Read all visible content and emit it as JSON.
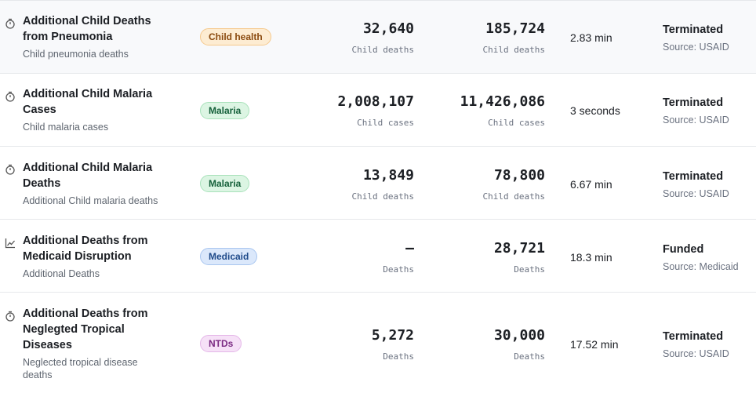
{
  "rows": [
    {
      "title_lines": [
        "Additional Child Deaths",
        "from Pneumonia"
      ],
      "subtitle_lines": [
        "Child pneumonia deaths"
      ],
      "badge": {
        "label": "Child health",
        "bg": "#fdecd2",
        "border": "#f5c98d",
        "color": "#8a4a0f"
      },
      "value1": "32,640",
      "unit1": "Child deaths",
      "value2": "185,724",
      "unit2": "Child deaths",
      "time": "2.83 min",
      "status": "Terminated",
      "source": "Source: USAID",
      "icon": "stopwatch-icon"
    },
    {
      "title_lines": [
        "Additional Child Malaria",
        "Cases"
      ],
      "subtitle_lines": [
        "Child malaria cases"
      ],
      "badge": {
        "label": "Malaria",
        "bg": "#dcf5e3",
        "border": "#a9e2bb",
        "color": "#15603a"
      },
      "value1": "2,008,107",
      "unit1": "Child cases",
      "value2": "11,426,086",
      "unit2": "Child cases",
      "time": "3 seconds",
      "status": "Terminated",
      "source": "Source: USAID",
      "icon": "stopwatch-icon"
    },
    {
      "title_lines": [
        "Additional Child Malaria",
        "Deaths"
      ],
      "subtitle_lines": [
        "Additional Child malaria deaths"
      ],
      "badge": {
        "label": "Malaria",
        "bg": "#dcf5e3",
        "border": "#a9e2bb",
        "color": "#15603a"
      },
      "value1": "13,849",
      "unit1": "Child deaths",
      "value2": "78,800",
      "unit2": "Child deaths",
      "time": "6.67 min",
      "status": "Terminated",
      "source": "Source: USAID",
      "icon": "stopwatch-icon"
    },
    {
      "title_lines": [
        "Additional Deaths from",
        "Medicaid Disruption"
      ],
      "subtitle_lines": [
        "Additional Deaths"
      ],
      "badge": {
        "label": "Medicaid",
        "bg": "#dbe8fb",
        "border": "#a9c6f0",
        "color": "#1e4a8a"
      },
      "value1": "—",
      "unit1": "Deaths",
      "value2": "28,721",
      "unit2": "Deaths",
      "time": "18.3 min",
      "status": "Funded",
      "source": "Source: Medicaid",
      "icon": "trend-chart-icon"
    },
    {
      "title_lines": [
        "Additional Deaths from",
        "Neglegted Tropical",
        "Diseases"
      ],
      "subtitle_lines": [
        "Neglected tropical disease",
        "deaths"
      ],
      "badge": {
        "label": "NTDs",
        "bg": "#f6e1f7",
        "border": "#e4b7e8",
        "color": "#7a2a82"
      },
      "value1": "5,272",
      "unit1": "Deaths",
      "value2": "30,000",
      "unit2": "Deaths",
      "time": "17.52 min",
      "status": "Terminated",
      "source": "Source: USAID",
      "icon": "stopwatch-icon"
    }
  ]
}
